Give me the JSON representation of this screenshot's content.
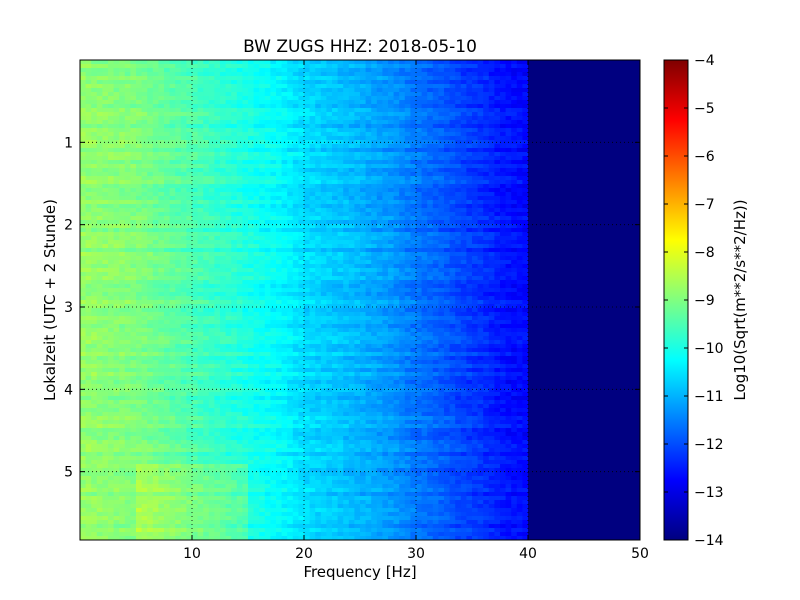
{
  "chart_data": {
    "type": "heatmap",
    "title": "BW ZUGS HHZ: 2018-05-10",
    "xlabel": "Frequency [Hz]",
    "ylabel": "Lokalzeit (UTC + 2 Stunde)",
    "xlim": [
      0,
      50
    ],
    "ylim": [
      0,
      5.83
    ],
    "y_inverted": true,
    "x_ticks": [
      10,
      20,
      30,
      40,
      50
    ],
    "y_ticks": [
      1,
      2,
      3,
      4,
      5
    ],
    "grid": true,
    "colormap": "jet",
    "colorbar": {
      "label": "Log10(Sqrt(m**2/s**2/Hz))",
      "range": [
        -14,
        -4
      ],
      "ticks": [
        -14,
        -13,
        -12,
        -11,
        -10,
        -9,
        -8,
        -7,
        -6,
        -5,
        -4
      ]
    },
    "spectrum_profile": {
      "frequency_hz": [
        0,
        5,
        10,
        15,
        18,
        20,
        24,
        28,
        30,
        32,
        34,
        36,
        38,
        39.8,
        40,
        50
      ],
      "level": [
        -8.8,
        -9.0,
        -9.5,
        -10.0,
        -10.3,
        -10.6,
        -10.9,
        -11.3,
        -11.6,
        -11.8,
        -12.1,
        -12.3,
        -12.6,
        -12.7,
        -14,
        -14
      ]
    }
  }
}
